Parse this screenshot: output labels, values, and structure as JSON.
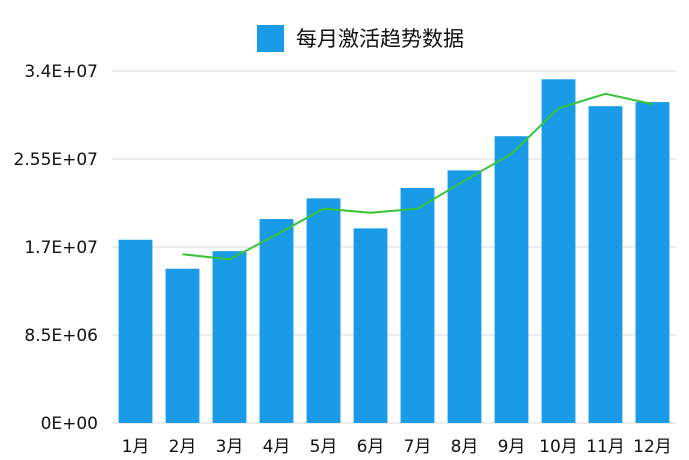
{
  "chart_data": {
    "type": "bar",
    "legend": {
      "label": "每月激活趋势数据",
      "placement": "top-center"
    },
    "categories": [
      "1月",
      "2月",
      "3月",
      "4月",
      "5月",
      "6月",
      "7月",
      "8月",
      "9月",
      "10月",
      "11月",
      "12月"
    ],
    "series": [
      {
        "name": "每月激活趋势数据",
        "type": "bar",
        "values": [
          17700000,
          14900000,
          16600000,
          19700000,
          21700000,
          18800000,
          22700000,
          24400000,
          27700000,
          33200000,
          30600000,
          31000000
        ]
      },
      {
        "type": "line",
        "values": [
          null,
          16300000,
          15800000,
          18200000,
          20700000,
          20300000,
          20700000,
          23400000,
          26000000,
          30400000,
          31800000,
          30800000
        ]
      }
    ],
    "yticks": [
      "0E+00",
      "8.5E+06",
      "1.7E+07",
      "2.55E+07",
      "3.4E+07"
    ],
    "ylim": [
      0,
      34000000
    ],
    "grid": true,
    "colors": {
      "bar": "#1a9be8",
      "line": "#35c43a",
      "grid": "#d9d9d9"
    }
  }
}
